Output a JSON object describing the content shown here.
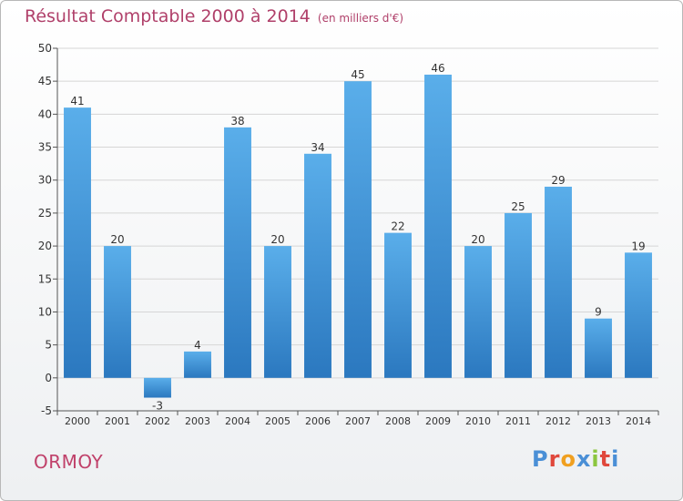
{
  "header": {
    "title": "Résultat Comptable 2000 à 2014",
    "subtitle": "(en milliers d'€)"
  },
  "footer": {
    "city": "ORMOY",
    "logo": "Proxiti",
    "logo_colors": [
      "#4a8fd6",
      "#e0483c",
      "#f0a020",
      "#4a8fd6",
      "#8cc63f",
      "#e0483c",
      "#4a8fd6"
    ]
  },
  "chart_data": {
    "type": "bar",
    "title": "Résultat Comptable 2000 à 2014",
    "subtitle": "(en milliers d'€)",
    "categories": [
      "2000",
      "2001",
      "2002",
      "2003",
      "2004",
      "2005",
      "2006",
      "2007",
      "2008",
      "2009",
      "2010",
      "2011",
      "2012",
      "2013",
      "2014"
    ],
    "values": [
      41,
      20,
      -3,
      4,
      38,
      20,
      34,
      45,
      22,
      46,
      20,
      25,
      29,
      9,
      19
    ],
    "ylim": [
      -5,
      50
    ],
    "yticks": [
      -5,
      0,
      5,
      10,
      15,
      20,
      25,
      30,
      35,
      40,
      45,
      50
    ],
    "grid": true,
    "xlabel": "",
    "ylabel": "",
    "bar_color_top": "#5aaeea",
    "bar_color_bottom": "#2b78bf"
  }
}
